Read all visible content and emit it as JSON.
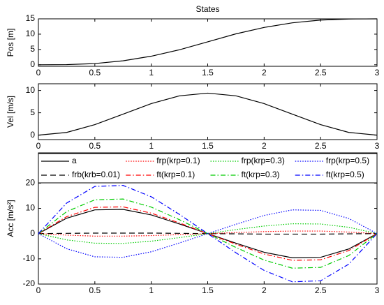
{
  "chart_data": [
    {
      "type": "line",
      "title": "States",
      "ylabel": "Pos [m]",
      "x": [
        0,
        0.25,
        0.5,
        0.75,
        1,
        1.25,
        1.5,
        1.75,
        2,
        2.25,
        2.5,
        2.75,
        3
      ],
      "xlim": [
        0,
        3
      ],
      "xticks": [
        0,
        0.5,
        1,
        1.5,
        2,
        2.5,
        3
      ],
      "ylim": [
        -0.5,
        15
      ],
      "yticks": [
        0,
        5,
        10,
        15
      ],
      "series": [
        {
          "color": "#000000",
          "dash": "solid",
          "values": [
            0,
            0.05,
            0.4,
            1.3,
            2.8,
            4.9,
            7.5,
            10.1,
            12.2,
            13.7,
            14.6,
            14.95,
            15
          ]
        }
      ]
    },
    {
      "type": "line",
      "ylabel": "Vel [m/s]",
      "x": [
        0,
        0.25,
        0.5,
        0.75,
        1,
        1.25,
        1.5,
        1.75,
        2,
        2.25,
        2.5,
        2.75,
        3
      ],
      "xlim": [
        0,
        3
      ],
      "xticks": [
        0,
        0.5,
        1,
        1.5,
        2,
        2.5,
        3
      ],
      "ylim": [
        -1,
        11.5
      ],
      "yticks": [
        0,
        5,
        10
      ],
      "series": [
        {
          "color": "#000000",
          "dash": "solid",
          "values": [
            0,
            0.6,
            2.35,
            4.7,
            7.05,
            8.8,
            9.4,
            8.8,
            7.05,
            4.7,
            2.35,
            0.6,
            0
          ]
        }
      ]
    },
    {
      "type": "line",
      "ylabel": "Acc [m/s²]",
      "legend": "top",
      "x": [
        0,
        0.25,
        0.5,
        0.75,
        1,
        1.25,
        1.5,
        1.75,
        2,
        2.25,
        2.5,
        2.75,
        3
      ],
      "xlim": [
        0,
        3
      ],
      "xticks": [
        0,
        0.5,
        1,
        1.5,
        2,
        2.5,
        3
      ],
      "ylim": [
        -20,
        32
      ],
      "yticks": [
        -20,
        -10,
        0,
        10,
        20
      ],
      "series": [
        {
          "name": "a",
          "color": "#000000",
          "dash": "solid",
          "values": [
            0,
            6.1,
            9.4,
            9.6,
            7.4,
            3.8,
            0,
            -3.8,
            -7.4,
            -9.6,
            -9.4,
            -6.1,
            0
          ]
        },
        {
          "name": "frb(krb=0.01)",
          "color": "#000000",
          "dash": "dashed",
          "values": [
            0,
            0.1,
            0.2,
            0.2,
            0.2,
            0.1,
            0,
            -0.1,
            -0.2,
            -0.2,
            -0.2,
            -0.1,
            0
          ]
        },
        {
          "name": "frp(krp=0.1)",
          "color": "#ff0000",
          "dash": "dotted",
          "values": [
            0,
            -0.6,
            -1,
            -1,
            -0.8,
            -0.4,
            0,
            0.4,
            0.8,
            1,
            1,
            0.6,
            0
          ]
        },
        {
          "name": "ft(krp=0.1)",
          "color": "#ff0000",
          "dash": "dashdot",
          "values": [
            0,
            6.7,
            10.4,
            10.6,
            8.1,
            4.2,
            0,
            -4.2,
            -8.1,
            -10.6,
            -10.4,
            -6.7,
            0
          ]
        },
        {
          "name": "frp(krp=0.3)",
          "color": "#00cc00",
          "dash": "dotted",
          "values": [
            0,
            -2.5,
            -3.8,
            -3.9,
            -3,
            -1.6,
            0,
            1.6,
            3,
            3.9,
            3.8,
            2.5,
            0
          ]
        },
        {
          "name": "ft(krp=0.3)",
          "color": "#00cc00",
          "dash": "dashdot",
          "values": [
            0,
            8.7,
            13.4,
            13.7,
            10.5,
            5.5,
            0,
            -5.5,
            -10.5,
            -13.7,
            -13.4,
            -8.7,
            0
          ]
        },
        {
          "name": "frp(krp=0.5)",
          "color": "#0000ff",
          "dash": "dotted",
          "values": [
            0,
            -6,
            -9.2,
            -9.4,
            -7.2,
            -3.7,
            0,
            3.7,
            7.2,
            9.4,
            9.2,
            6,
            0
          ]
        },
        {
          "name": "ft(krp=0.5)",
          "color": "#0000ff",
          "dash": "dashdot",
          "values": [
            0,
            12.1,
            18.7,
            19.1,
            14.6,
            7.6,
            0,
            -7.6,
            -14.6,
            -19.1,
            -18.7,
            -12.1,
            0
          ]
        }
      ]
    }
  ]
}
